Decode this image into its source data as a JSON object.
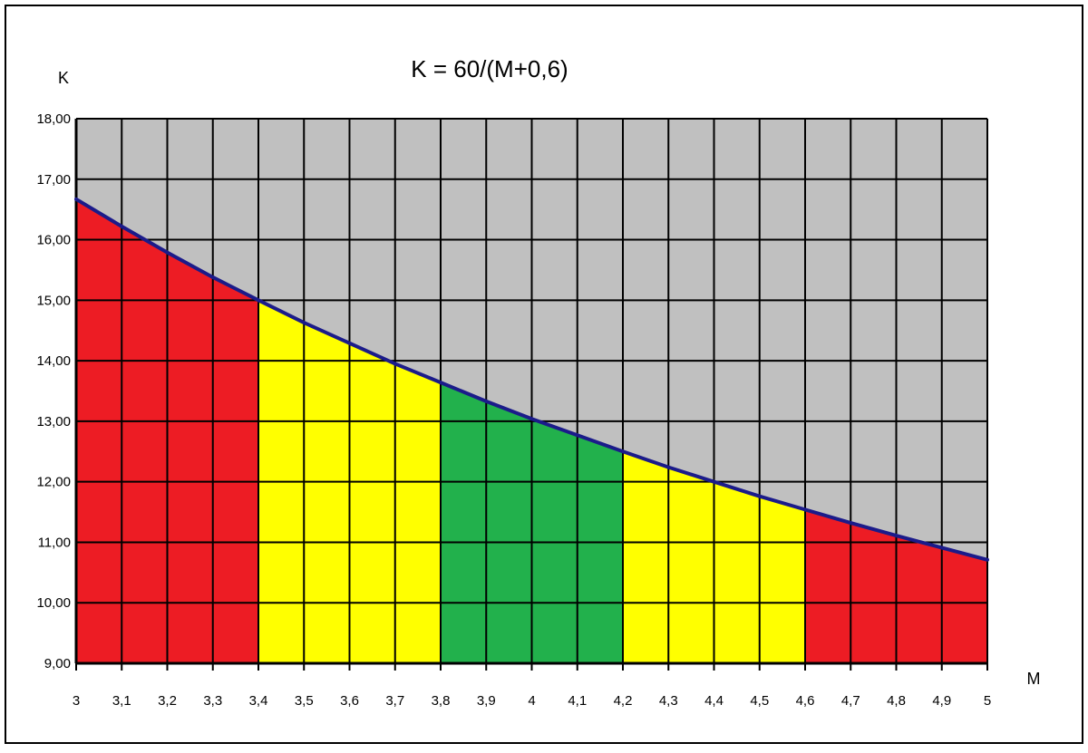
{
  "chart_data": {
    "type": "area",
    "title": "K = 60/(M+0,6)",
    "xlabel": "M",
    "ylabel": "K",
    "xlim": [
      3,
      5
    ],
    "ylim": [
      9,
      18
    ],
    "grid": true,
    "x_ticks": [
      "3",
      "3,1",
      "3,2",
      "3,3",
      "3,4",
      "3,5",
      "3,6",
      "3,7",
      "3,8",
      "3,9",
      "4",
      "4,1",
      "4,2",
      "4,3",
      "4,4",
      "4,5",
      "4,6",
      "4,7",
      "4,8",
      "4,9",
      "5"
    ],
    "y_ticks": [
      "9,00",
      "10,00",
      "11,00",
      "12,00",
      "13,00",
      "14,00",
      "15,00",
      "16,00",
      "17,00",
      "18,00"
    ],
    "x_tick_values": [
      3,
      3.1,
      3.2,
      3.3,
      3.4,
      3.5,
      3.6,
      3.7,
      3.8,
      3.9,
      4,
      4.1,
      4.2,
      4.3,
      4.4,
      4.5,
      4.6,
      4.7,
      4.8,
      4.9,
      5
    ],
    "y_tick_values": [
      9,
      10,
      11,
      12,
      13,
      14,
      15,
      16,
      17,
      18
    ],
    "curve": {
      "x": [
        3,
        3.1,
        3.2,
        3.3,
        3.4,
        3.5,
        3.6,
        3.7,
        3.8,
        3.9,
        4,
        4.1,
        4.2,
        4.3,
        4.4,
        4.5,
        4.6,
        4.7,
        4.8,
        4.9,
        5
      ],
      "y": [
        16.67,
        16.22,
        15.79,
        15.38,
        15.0,
        14.63,
        14.29,
        13.95,
        13.64,
        13.33,
        13.04,
        12.77,
        12.5,
        12.24,
        12.0,
        11.76,
        11.54,
        11.32,
        11.11,
        10.91,
        10.71
      ]
    },
    "bands": [
      {
        "x_start": 3.0,
        "x_end": 3.4,
        "color": "#ed1c24"
      },
      {
        "x_start": 3.4,
        "x_end": 3.8,
        "color": "#ffff00"
      },
      {
        "x_start": 3.8,
        "x_end": 4.2,
        "color": "#22b14c"
      },
      {
        "x_start": 4.2,
        "x_end": 4.6,
        "color": "#ffff00"
      },
      {
        "x_start": 4.6,
        "x_end": 5.0,
        "color": "#ed1c24"
      }
    ],
    "colors": {
      "plot_background": "#c0c0c0",
      "grid": "#000000",
      "curve": "#1b1b8a"
    }
  }
}
